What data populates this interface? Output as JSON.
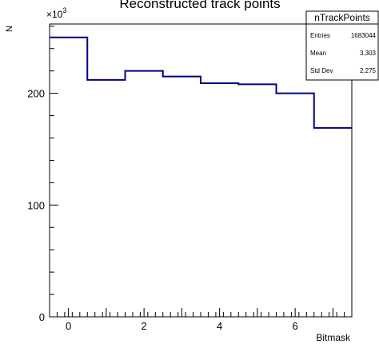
{
  "chart_data": {
    "type": "bar",
    "title": "Reconstructed track points",
    "xlabel": "Bitmask",
    "ylabel": "N",
    "y_exponent_label": "×10",
    "y_exponent_power": "3",
    "x_bin_edges": [
      -0.5,
      0.5,
      1.5,
      2.5,
      3.5,
      4.5,
      5.5,
      6.5,
      7.5
    ],
    "values": [
      250,
      212,
      220,
      215,
      209,
      208,
      200,
      169
    ],
    "y_scale_note": "values in units of 10^3",
    "xlim": [
      -0.5,
      7.5
    ],
    "ylim": [
      0,
      262
    ],
    "x_ticks": [
      0,
      2,
      4,
      6
    ],
    "y_ticks": [
      0,
      100,
      200
    ],
    "line_color": "#000080",
    "grid": false,
    "stats_box": {
      "name": "nTrackPoints",
      "rows": [
        {
          "label": "Entries",
          "value": "1683044"
        },
        {
          "label": "Mean",
          "value": "3.303"
        },
        {
          "label": "Std Dev",
          "value": "2.275"
        }
      ],
      "placement": "top-right"
    }
  }
}
